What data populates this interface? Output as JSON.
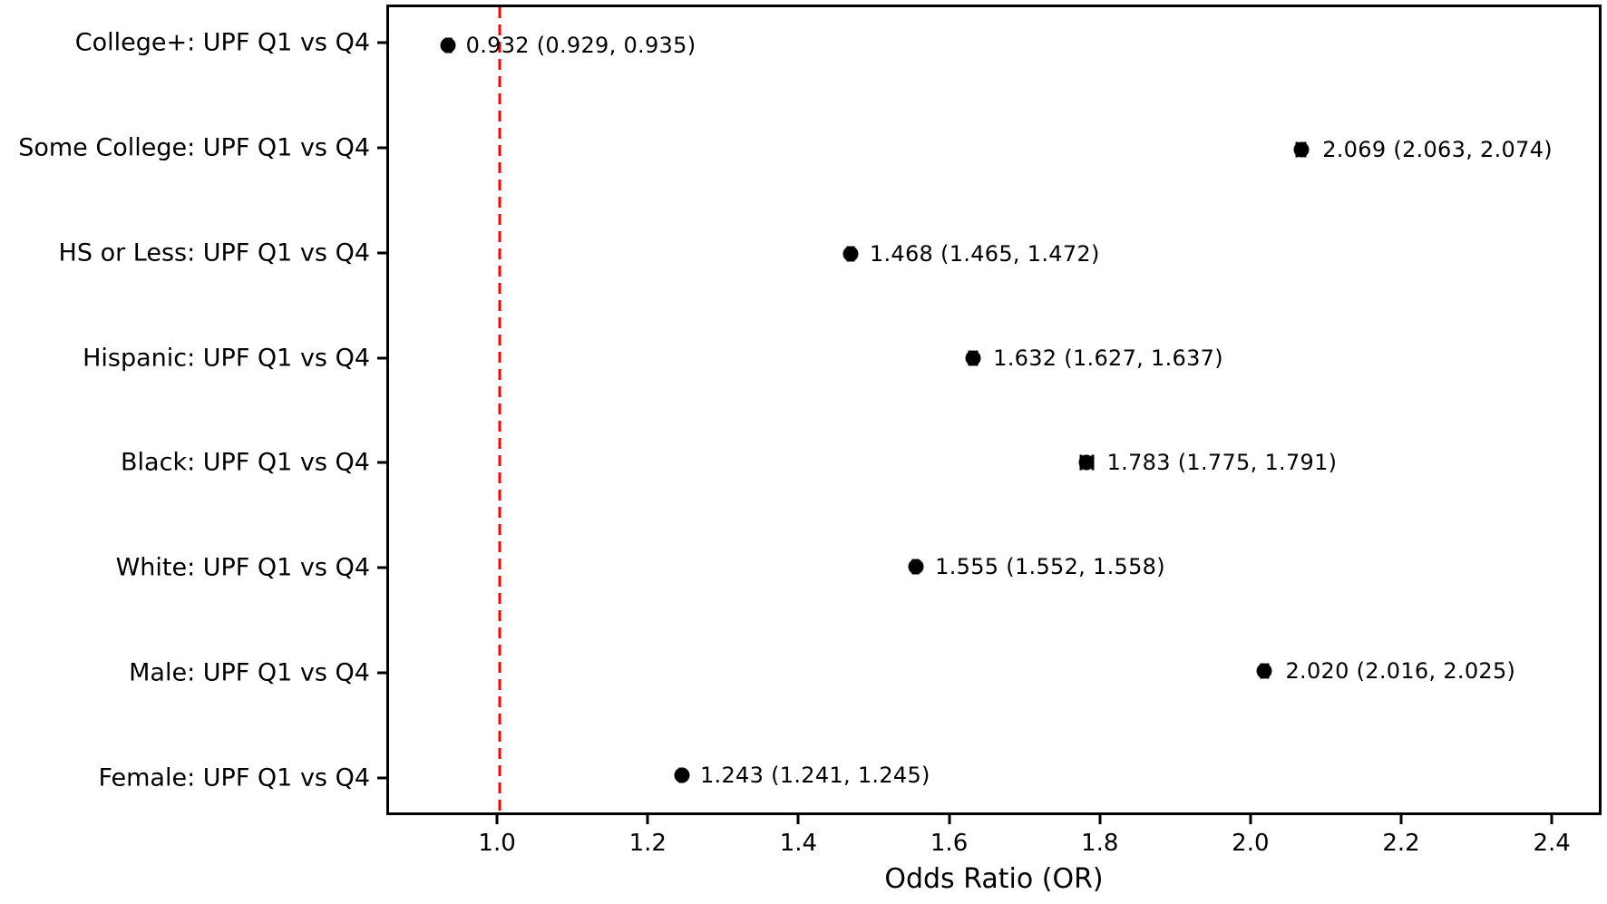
{
  "chart_data": {
    "type": "scatter",
    "subtype": "forest-plot",
    "title": "",
    "xlabel": "Odds Ratio (OR)",
    "ylabel": "",
    "xlim": [
      0.853,
      2.466
    ],
    "x_ticks": [
      1.0,
      1.2,
      1.4,
      1.6,
      1.8,
      2.0,
      2.2,
      2.4
    ],
    "x_tick_labels": [
      "1.0",
      "1.2",
      "1.4",
      "1.6",
      "1.8",
      "2.0",
      "2.2",
      "2.4"
    ],
    "grid": false,
    "legend": "none",
    "marker_color": "#000000",
    "reference_line": {
      "x": 1.0,
      "color": "#ff0000",
      "style": "dashed"
    },
    "rows": [
      {
        "label": "College+: UPF Q1 vs Q4",
        "or": 0.932,
        "ci_low": 0.929,
        "ci_high": 0.935,
        "annotation": "0.932 (0.929, 0.935)"
      },
      {
        "label": "Some College: UPF Q1 vs Q4",
        "or": 2.069,
        "ci_low": 2.063,
        "ci_high": 2.074,
        "annotation": "2.069 (2.063, 2.074)"
      },
      {
        "label": "HS or Less: UPF Q1 vs Q4",
        "or": 1.468,
        "ci_low": 1.465,
        "ci_high": 1.472,
        "annotation": "1.468 (1.465, 1.472)"
      },
      {
        "label": "Hispanic: UPF Q1 vs Q4",
        "or": 1.632,
        "ci_low": 1.627,
        "ci_high": 1.637,
        "annotation": "1.632 (1.627, 1.637)"
      },
      {
        "label": "Black: UPF Q1 vs Q4",
        "or": 1.783,
        "ci_low": 1.775,
        "ci_high": 1.791,
        "annotation": "1.783 (1.775, 1.791)"
      },
      {
        "label": "White: UPF Q1 vs Q4",
        "or": 1.555,
        "ci_low": 1.552,
        "ci_high": 1.558,
        "annotation": "1.555 (1.552, 1.558)"
      },
      {
        "label": "Male: UPF Q1 vs Q4",
        "or": 2.02,
        "ci_low": 2.016,
        "ci_high": 2.025,
        "annotation": "2.020 (2.016, 2.025)"
      },
      {
        "label": "Female: UPF Q1 vs Q4",
        "or": 1.243,
        "ci_low": 1.241,
        "ci_high": 1.245,
        "annotation": "1.243 (1.241, 1.245)"
      }
    ],
    "layout": {
      "row_first_frac": 0.047,
      "row_step_frac": 0.1296
    }
  }
}
